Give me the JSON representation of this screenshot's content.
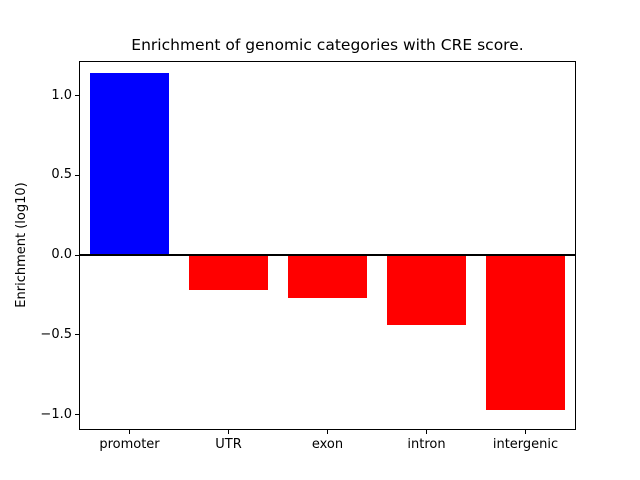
{
  "chart_data": {
    "type": "bar",
    "title": "Enrichment of genomic categories with CRE score.",
    "xlabel": "",
    "ylabel": "Enrichment (log10)",
    "categories": [
      "promoter",
      "UTR",
      "exon",
      "intron",
      "intergenic"
    ],
    "values": [
      1.14,
      -0.22,
      -0.27,
      -0.44,
      -0.97
    ],
    "bar_colors": [
      "#0000ff",
      "#ff0000",
      "#ff0000",
      "#ff0000",
      "#ff0000"
    ],
    "ylim": [
      -1.09,
      1.21
    ],
    "y_ticks": [
      -1.0,
      -0.5,
      0.0,
      0.5,
      1.0
    ],
    "y_tick_labels": [
      "−1.0",
      "−0.5",
      "0.0",
      "0.5",
      "1.0"
    ],
    "zero_line": true,
    "grid": false,
    "legend": "none",
    "bar_width_fraction": 0.8
  }
}
